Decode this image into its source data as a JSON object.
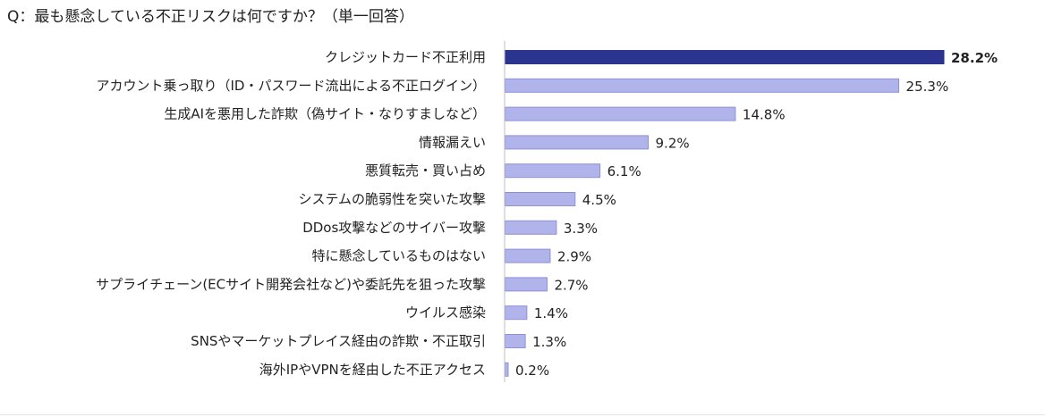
{
  "question": "Q：最も懸念している不正リスクは何ですか？（単一回答）",
  "chart_data": {
    "type": "bar",
    "orientation": "horizontal",
    "title": "Q：最も懸念している不正リスクは何ですか？（単一回答）",
    "xlim": [
      0,
      30
    ],
    "grid": false,
    "legend": "none",
    "highlight_color": "#2B3590",
    "bar_color": "#B1B3EB",
    "bar_border_color": "#8E91D8",
    "highlight_index": 0,
    "categories": [
      "クレジットカード不正利用",
      "アカウント乗っ取り（ID・パスワード流出による不正ログイン）",
      "生成AIを悪用した詐欺（偽サイト・なりすましなど）",
      "情報漏えい",
      "悪質転売・買い占め",
      "システムの脆弱性を突いた攻撃",
      "DDos攻撃などのサイバー攻撃",
      "特に懸念しているものはない",
      "サプライチェーン(ECサイト開発会社など)や委託先を狙った攻撃",
      "ウイルス感染",
      "SNSやマーケットプレイス経由の詐欺・不正取引",
      "海外IPやVPNを経由した不正アクセス"
    ],
    "values": [
      28.2,
      25.3,
      14.8,
      9.2,
      6.1,
      4.5,
      3.3,
      2.9,
      2.7,
      1.4,
      1.3,
      0.2
    ],
    "value_labels": [
      "28.2%",
      "25.3%",
      "14.8%",
      "9.2%",
      "6.1%",
      "4.5%",
      "3.3%",
      "2.9%",
      "2.7%",
      "1.4%",
      "1.3%",
      "0.2%"
    ]
  }
}
